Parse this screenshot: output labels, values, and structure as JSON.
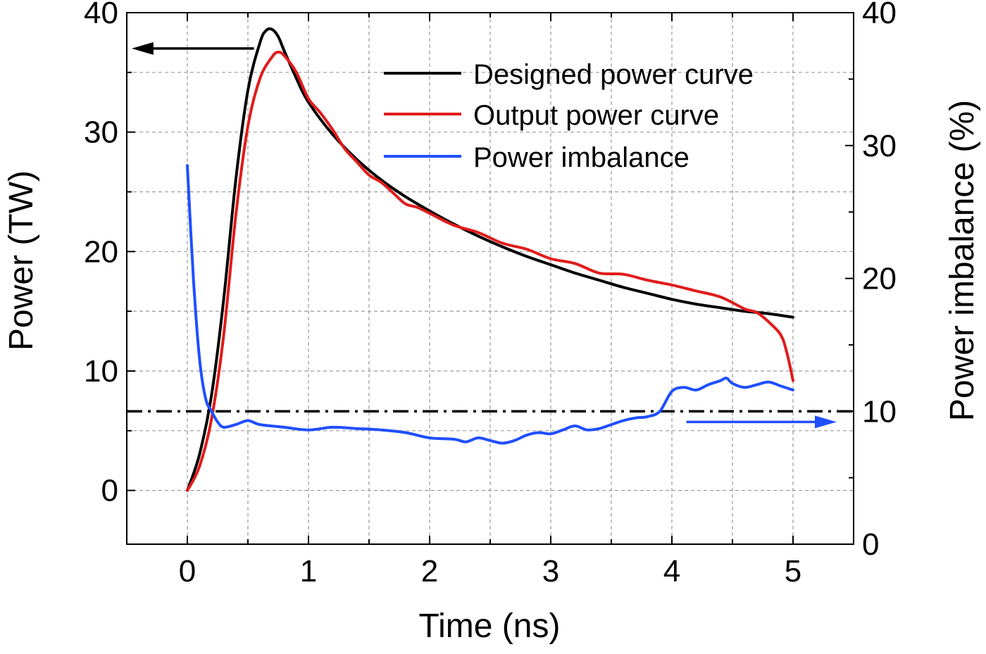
{
  "chart_data": {
    "type": "line",
    "xlabel": "Time (ns)",
    "ylabel_left": "Power (TW)",
    "ylabel_right": "Power imbalance (%)",
    "xlim": [
      -0.5,
      5.5
    ],
    "ylim_left": [
      -4.5,
      40
    ],
    "ylim_right": [
      0,
      40
    ],
    "x_ticks": [
      "0",
      "1",
      "2",
      "3",
      "4",
      "5"
    ],
    "y_left_ticks": [
      "0",
      "10",
      "20",
      "30",
      "40"
    ],
    "y_right_ticks": [
      "0",
      "10",
      "20",
      "30",
      "40"
    ],
    "grid": true,
    "legend_position": "top-right",
    "reference_line": {
      "axis": "right",
      "y": 10,
      "style": "dash-dot",
      "color": "#000000"
    },
    "series": [
      {
        "name": "Designed power curve",
        "axis": "left",
        "color": "#000000",
        "x": [
          0,
          0.1,
          0.2,
          0.3,
          0.4,
          0.5,
          0.6,
          0.65,
          0.7,
          0.75,
          0.8,
          0.9,
          1.0,
          1.2,
          1.4,
          1.6,
          1.8,
          2.0,
          2.2,
          2.4,
          2.6,
          2.8,
          3.0,
          3.2,
          3.4,
          3.6,
          3.8,
          4.0,
          4.2,
          4.4,
          4.6,
          4.8,
          5.0
        ],
        "y": [
          0,
          3,
          8,
          16,
          26,
          33.5,
          37.5,
          38.5,
          38.6,
          38,
          36.8,
          34.5,
          32.5,
          29.8,
          27.7,
          26.0,
          24.6,
          23.4,
          22.3,
          21.3,
          20.4,
          19.6,
          18.9,
          18.2,
          17.6,
          17.0,
          16.5,
          16.0,
          15.6,
          15.3,
          15.0,
          14.8,
          14.5
        ]
      },
      {
        "name": "Output power curve",
        "axis": "left",
        "color": "#e11b1b",
        "x": [
          0,
          0.1,
          0.2,
          0.3,
          0.4,
          0.5,
          0.6,
          0.7,
          0.75,
          0.8,
          0.9,
          1.0,
          1.1,
          1.2,
          1.3,
          1.4,
          1.5,
          1.6,
          1.7,
          1.8,
          1.9,
          2.0,
          2.2,
          2.4,
          2.6,
          2.8,
          3.0,
          3.2,
          3.4,
          3.6,
          3.8,
          4.0,
          4.2,
          4.4,
          4.6,
          4.7,
          4.8,
          4.9,
          4.95,
          5.0
        ],
        "y": [
          0,
          2,
          6,
          13,
          23,
          30.5,
          34.5,
          36.3,
          36.7,
          36.4,
          35,
          32.8,
          31.6,
          30.2,
          28.6,
          27.5,
          26.4,
          25.8,
          24.9,
          24.0,
          23.7,
          23.2,
          22.2,
          21.6,
          20.7,
          20.2,
          19.4,
          19.0,
          18.2,
          18.1,
          17.6,
          17.2,
          16.7,
          16.2,
          15.2,
          14.9,
          14.1,
          13.0,
          11.5,
          9.2
        ]
      },
      {
        "name": "Power imbalance",
        "axis": "right",
        "color": "#1f4fff",
        "x": [
          0,
          0.05,
          0.1,
          0.15,
          0.2,
          0.25,
          0.3,
          0.4,
          0.5,
          0.6,
          0.8,
          1.0,
          1.2,
          1.4,
          1.6,
          1.8,
          2.0,
          2.2,
          2.3,
          2.4,
          2.5,
          2.6,
          2.7,
          2.8,
          2.9,
          3.0,
          3.1,
          3.2,
          3.3,
          3.4,
          3.5,
          3.6,
          3.7,
          3.8,
          3.9,
          4.0,
          4.1,
          4.2,
          4.3,
          4.4,
          4.45,
          4.5,
          4.6,
          4.7,
          4.8,
          4.9,
          5.0
        ],
        "y": [
          28.5,
          20,
          14,
          11,
          10,
          9.2,
          8.8,
          9.0,
          9.3,
          9.0,
          8.8,
          8.6,
          8.8,
          8.7,
          8.6,
          8.4,
          8.0,
          7.9,
          7.7,
          8.0,
          7.8,
          7.6,
          7.8,
          8.2,
          8.4,
          8.3,
          8.6,
          8.9,
          8.6,
          8.7,
          9.0,
          9.3,
          9.5,
          9.6,
          10.0,
          11.5,
          11.8,
          11.6,
          12.0,
          12.3,
          12.5,
          12.1,
          11.8,
          12.0,
          12.2,
          11.9,
          11.6
        ]
      }
    ],
    "arrows": [
      {
        "points_to": "left",
        "color": "#000000"
      },
      {
        "points_to": "right",
        "color": "#1f4fff"
      }
    ]
  }
}
